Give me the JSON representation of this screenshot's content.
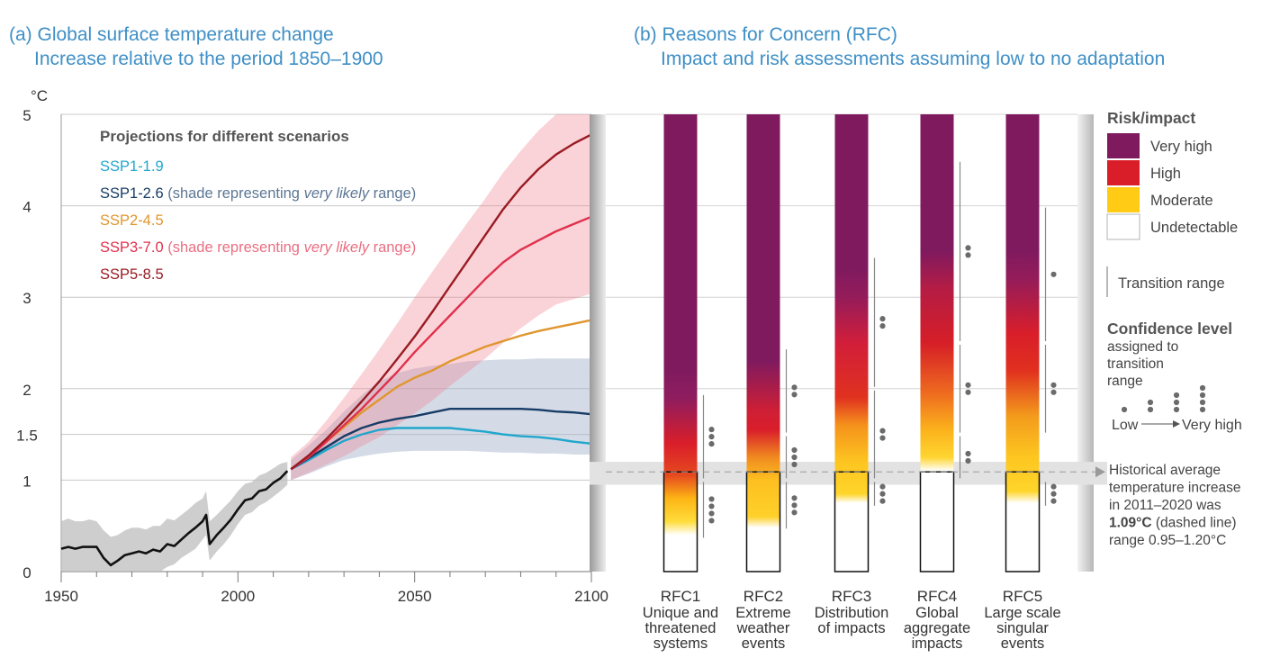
{
  "panel_a": {
    "title": "(a) Global surface temperature change",
    "subtitle": "Increase relative to the period 1850–1900",
    "unit": "°C"
  },
  "panel_b": {
    "title": "(b) Reasons for Concern (RFC)",
    "subtitle": "Impact and risk assessments assuming low to no adaptation"
  },
  "legend_a": {
    "heading": "Projections for different scenarios",
    "items": [
      {
        "label": "SSP1-1.9",
        "note": "",
        "note_italic": "",
        "note_end": "",
        "color": "#21a6cc"
      },
      {
        "label": "SSP1-2.6",
        "note": " (shade representing ",
        "note_italic": "very likely",
        "note_end": " range)",
        "color": "#173c66"
      },
      {
        "label": "SSP2-4.5",
        "note": "",
        "note_italic": "",
        "note_end": "",
        "color": "#e0962f"
      },
      {
        "label": "SSP3-7.0",
        "note": " (shade representing ",
        "note_italic": "very likely",
        "note_end": " range)",
        "color": "#e0304c"
      },
      {
        "label": "SSP5-8.5",
        "note": "",
        "note_italic": "",
        "note_end": "",
        "color": "#991b22"
      }
    ]
  },
  "chart_data": [
    {
      "type": "line",
      "ylabel": "°C",
      "xlim": [
        1950,
        2100
      ],
      "ylim": [
        0,
        5
      ],
      "x_ticks": [
        1950,
        2000,
        2050,
        2100
      ],
      "y_ticks": [
        0,
        1,
        1.5,
        2,
        3,
        4,
        5
      ],
      "y_tick_labels": [
        "0",
        "1",
        "1.5",
        "2",
        "3",
        "4",
        "5"
      ],
      "grid": true,
      "series": [
        {
          "name": "historical",
          "color": "#111111",
          "x": [
            1950,
            1952,
            1954,
            1956,
            1958,
            1960,
            1962,
            1964,
            1966,
            1968,
            1970,
            1972,
            1974,
            1976,
            1978,
            1980,
            1982,
            1984,
            1986,
            1988,
            1990,
            1991,
            1992,
            1994,
            1996,
            1998,
            2000,
            2002,
            2004,
            2006,
            2008,
            2010,
            2012,
            2014
          ],
          "y": [
            0.25,
            0.27,
            0.25,
            0.27,
            0.27,
            0.27,
            0.15,
            0.07,
            0.12,
            0.18,
            0.2,
            0.22,
            0.2,
            0.24,
            0.22,
            0.3,
            0.28,
            0.35,
            0.42,
            0.48,
            0.55,
            0.62,
            0.3,
            0.4,
            0.48,
            0.57,
            0.68,
            0.78,
            0.8,
            0.88,
            0.9,
            0.97,
            1.02,
            1.1
          ],
          "lower": [
            0.0,
            0.0,
            0.0,
            0.0,
            0.0,
            0.0,
            0.0,
            0.0,
            0.0,
            0.0,
            0.0,
            0.0,
            0.0,
            0.0,
            0.0,
            0.05,
            0.08,
            0.15,
            0.2,
            0.25,
            0.35,
            0.4,
            0.12,
            0.22,
            0.3,
            0.4,
            0.52,
            0.62,
            0.65,
            0.72,
            0.76,
            0.82,
            0.88,
            0.95
          ],
          "upper": [
            0.55,
            0.58,
            0.55,
            0.55,
            0.57,
            0.55,
            0.45,
            0.38,
            0.4,
            0.45,
            0.48,
            0.48,
            0.46,
            0.5,
            0.5,
            0.58,
            0.56,
            0.62,
            0.68,
            0.75,
            0.8,
            0.88,
            0.55,
            0.62,
            0.7,
            0.78,
            0.88,
            0.96,
            0.98,
            1.05,
            1.08,
            1.13,
            1.18,
            1.2
          ]
        },
        {
          "name": "SSP1-1.9",
          "color": "#21a6cc",
          "x": [
            2015,
            2020,
            2025,
            2030,
            2035,
            2040,
            2045,
            2050,
            2055,
            2060,
            2065,
            2070,
            2075,
            2080,
            2085,
            2090,
            2095,
            2100
          ],
          "y": [
            1.12,
            1.22,
            1.33,
            1.43,
            1.5,
            1.55,
            1.57,
            1.57,
            1.57,
            1.57,
            1.55,
            1.53,
            1.5,
            1.48,
            1.47,
            1.45,
            1.42,
            1.4
          ]
        },
        {
          "name": "SSP1-2.6",
          "color": "#173c66",
          "x": [
            2015,
            2020,
            2025,
            2030,
            2035,
            2040,
            2045,
            2050,
            2055,
            2060,
            2065,
            2070,
            2075,
            2080,
            2085,
            2090,
            2095,
            2100
          ],
          "y": [
            1.12,
            1.24,
            1.36,
            1.48,
            1.57,
            1.63,
            1.67,
            1.7,
            1.74,
            1.78,
            1.78,
            1.78,
            1.78,
            1.78,
            1.77,
            1.75,
            1.74,
            1.72
          ],
          "lower": [
            1.0,
            1.07,
            1.15,
            1.22,
            1.26,
            1.29,
            1.31,
            1.32,
            1.32,
            1.32,
            1.32,
            1.31,
            1.3,
            1.3,
            1.29,
            1.29,
            1.28,
            1.28
          ],
          "upper": [
            1.22,
            1.38,
            1.55,
            1.75,
            1.93,
            2.08,
            2.17,
            2.22,
            2.25,
            2.27,
            2.3,
            2.31,
            2.32,
            2.32,
            2.33,
            2.33,
            2.33,
            2.33
          ]
        },
        {
          "name": "SSP2-4.5",
          "color": "#e0962f",
          "x": [
            2015,
            2020,
            2025,
            2030,
            2035,
            2040,
            2045,
            2050,
            2055,
            2060,
            2065,
            2070,
            2075,
            2080,
            2085,
            2090,
            2095,
            2100
          ],
          "y": [
            1.12,
            1.26,
            1.42,
            1.58,
            1.74,
            1.88,
            2.02,
            2.12,
            2.2,
            2.3,
            2.38,
            2.46,
            2.52,
            2.58,
            2.63,
            2.67,
            2.71,
            2.75
          ]
        },
        {
          "name": "SSP3-7.0",
          "color": "#e0304c",
          "x": [
            2015,
            2020,
            2025,
            2030,
            2035,
            2040,
            2045,
            2050,
            2055,
            2060,
            2065,
            2070,
            2075,
            2080,
            2085,
            2090,
            2095,
            2100
          ],
          "y": [
            1.12,
            1.25,
            1.42,
            1.6,
            1.78,
            1.98,
            2.18,
            2.4,
            2.6,
            2.8,
            3.0,
            3.2,
            3.38,
            3.52,
            3.62,
            3.72,
            3.8,
            3.88
          ],
          "lower": [
            1.0,
            1.08,
            1.17,
            1.26,
            1.37,
            1.47,
            1.6,
            1.73,
            1.87,
            2.03,
            2.18,
            2.33,
            2.5,
            2.66,
            2.8,
            2.92,
            2.98,
            3.04
          ],
          "upper": [
            1.25,
            1.42,
            1.65,
            1.9,
            2.16,
            2.43,
            2.71,
            3.0,
            3.28,
            3.55,
            3.82,
            4.08,
            4.36,
            4.6,
            4.82,
            5.0,
            5.0,
            5.0
          ]
        },
        {
          "name": "SSP5-8.5",
          "color": "#991b22",
          "x": [
            2015,
            2020,
            2025,
            2030,
            2035,
            2040,
            2045,
            2050,
            2055,
            2060,
            2065,
            2070,
            2075,
            2080,
            2085,
            2090,
            2095,
            2100
          ],
          "y": [
            1.12,
            1.27,
            1.45,
            1.65,
            1.86,
            2.08,
            2.32,
            2.57,
            2.84,
            3.12,
            3.4,
            3.68,
            3.96,
            4.2,
            4.4,
            4.56,
            4.68,
            4.78
          ]
        }
      ]
    },
    {
      "type": "heatmap",
      "ylim": [
        0,
        5
      ],
      "categories": [
        {
          "code": "RFC1",
          "lines": [
            "Unique and",
            "threatened",
            "systems"
          ]
        },
        {
          "code": "RFC2",
          "lines": [
            "Extreme",
            "weather",
            "events"
          ]
        },
        {
          "code": "RFC3",
          "lines": [
            "Distribution",
            "of impacts"
          ]
        },
        {
          "code": "RFC4",
          "lines": [
            "Global",
            "aggregate",
            "impacts"
          ]
        },
        {
          "code": "RFC5",
          "lines": [
            "Large scale",
            "singular",
            "events"
          ]
        }
      ],
      "risk_levels": [
        {
          "label": "Undetectable",
          "color": "#ffffff"
        },
        {
          "label": "Moderate",
          "color": "#ffcb15"
        },
        {
          "label": "High",
          "color": "#d91e2a"
        },
        {
          "label": "Very high",
          "color": "#801a5f"
        }
      ],
      "bars": [
        {
          "gradient": [
            [
              0.4,
              "#ffffff"
            ],
            [
              0.55,
              "#ffdc3a"
            ],
            [
              0.8,
              "#fdb515"
            ],
            [
              1.05,
              "#e64a1f"
            ],
            [
              1.4,
              "#d91e2a"
            ],
            [
              1.9,
              "#8e1d5f"
            ],
            [
              2.2,
              "#801a5f"
            ],
            [
              5,
              "#801a5f"
            ]
          ],
          "transitions": [
            {
              "from": 0.35,
              "to": 1.0,
              "dots": 4
            },
            {
              "from": 1.0,
              "to": 1.95,
              "dots": 3
            }
          ]
        },
        {
          "gradient": [
            [
              0.48,
              "#ffffff"
            ],
            [
              0.6,
              "#ffd02a"
            ],
            [
              1.0,
              "#fdc020"
            ],
            [
              1.25,
              "#f08a20"
            ],
            [
              1.55,
              "#d91e2a"
            ],
            [
              1.75,
              "#cf1f35"
            ],
            [
              2.3,
              "#801a5f"
            ],
            [
              5,
              "#801a5f"
            ]
          ],
          "transitions": [
            {
              "from": 0.45,
              "to": 1.0,
              "dots": 3
            },
            {
              "from": 1.0,
              "to": 1.5,
              "dots": 3
            },
            {
              "from": 1.5,
              "to": 2.45,
              "dots": 2
            }
          ]
        },
        {
          "gradient": [
            [
              0.75,
              "#ffffff"
            ],
            [
              0.85,
              "#ffd52a"
            ],
            [
              1.2,
              "#fdc520"
            ],
            [
              1.6,
              "#f5921c"
            ],
            [
              1.9,
              "#e0321f"
            ],
            [
              2.5,
              "#d11e3a"
            ],
            [
              3.0,
              "#951c5a"
            ],
            [
              3.3,
              "#801a5f"
            ],
            [
              5,
              "#801a5f"
            ]
          ],
          "transitions": [
            {
              "from": 0.7,
              "to": 1.0,
              "dots": 3
            },
            {
              "from": 1.0,
              "to": 2.0,
              "dots": 2
            },
            {
              "from": 2.0,
              "to": 3.45,
              "dots": 2
            }
          ]
        },
        {
          "gradient": [
            [
              1.1,
              "#ffffff"
            ],
            [
              1.25,
              "#ffd530"
            ],
            [
              1.55,
              "#fbb21c"
            ],
            [
              1.95,
              "#ee6b1f"
            ],
            [
              2.5,
              "#d61e27"
            ],
            [
              3.1,
              "#b41c45"
            ],
            [
              3.5,
              "#801a5f"
            ],
            [
              5,
              "#801a5f"
            ]
          ],
          "transitions": [
            {
              "from": 1.0,
              "to": 1.5,
              "dots": 2
            },
            {
              "from": 1.5,
              "to": 2.5,
              "dots": 2
            },
            {
              "from": 2.5,
              "to": 4.5,
              "dots": 2
            }
          ]
        },
        {
          "gradient": [
            [
              0.75,
              "#ffffff"
            ],
            [
              0.88,
              "#ffd52a"
            ],
            [
              1.25,
              "#fdc620"
            ],
            [
              1.7,
              "#f39b1c"
            ],
            [
              2.2,
              "#e0301f"
            ],
            [
              2.6,
              "#d91e2a"
            ],
            [
              3.2,
              "#951c5a"
            ],
            [
              3.5,
              "#801a5f"
            ],
            [
              5,
              "#801a5f"
            ]
          ],
          "transitions": [
            {
              "from": 0.7,
              "to": 1.0,
              "dots": 3
            },
            {
              "from": 1.5,
              "to": 2.5,
              "dots": 2
            },
            {
              "from": 2.5,
              "to": 4.0,
              "dots": 1
            }
          ]
        }
      ],
      "historical_band": {
        "value": 1.09,
        "lower": 0.95,
        "upper": 1.2
      }
    }
  ],
  "legend_b": {
    "risk_heading": "Risk/impact",
    "transition_label": "Transition range",
    "confidence_heading": "Confidence level",
    "confidence_sub": [
      "assigned to",
      "transition",
      "range"
    ],
    "confidence_low": "Low",
    "confidence_high": "Very high",
    "historical_note": {
      "line1": "Historical average",
      "line2": "temperature increase",
      "line3": "in 2011–2020 was",
      "line4_bold": "1.09°C",
      "line4_rest": " (dashed line)",
      "line5": "range 0.95–1.20°C"
    }
  }
}
